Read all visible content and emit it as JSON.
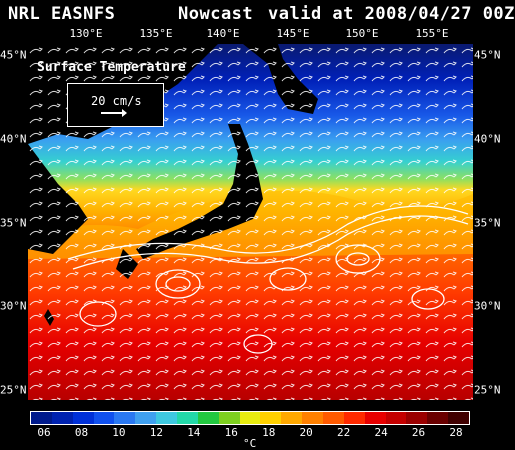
{
  "header": {
    "source": "NRL EASNFS",
    "product": "Nowcast",
    "valid": "valid at 2008/04/27 00Z"
  },
  "axes": {
    "longitudes": [
      "130°E",
      "135°E",
      "140°E",
      "145°E",
      "150°E",
      "155°E"
    ],
    "latitudes": [
      "45°N",
      "40°N",
      "35°N",
      "30°N",
      "25°N"
    ]
  },
  "legend": {
    "field": "Surface Temperature",
    "vector_scale": "20 cm/s"
  },
  "colorbar": {
    "ticks": [
      "06",
      "08",
      "10",
      "12",
      "14",
      "16",
      "18",
      "20",
      "22",
      "24",
      "26",
      "28"
    ],
    "unit": "°C",
    "colors": [
      "#001a8c",
      "#0022b0",
      "#0030d8",
      "#1050ee",
      "#2a78f2",
      "#3fa0f0",
      "#3ec8e0",
      "#22d8a8",
      "#22c840",
      "#7ed020",
      "#e8ec10",
      "#ffd000",
      "#ffa800",
      "#ff8000",
      "#ff5a00",
      "#ff2a00",
      "#e80000",
      "#c40000",
      "#9a0000",
      "#6a0000",
      "#400000"
    ]
  }
}
